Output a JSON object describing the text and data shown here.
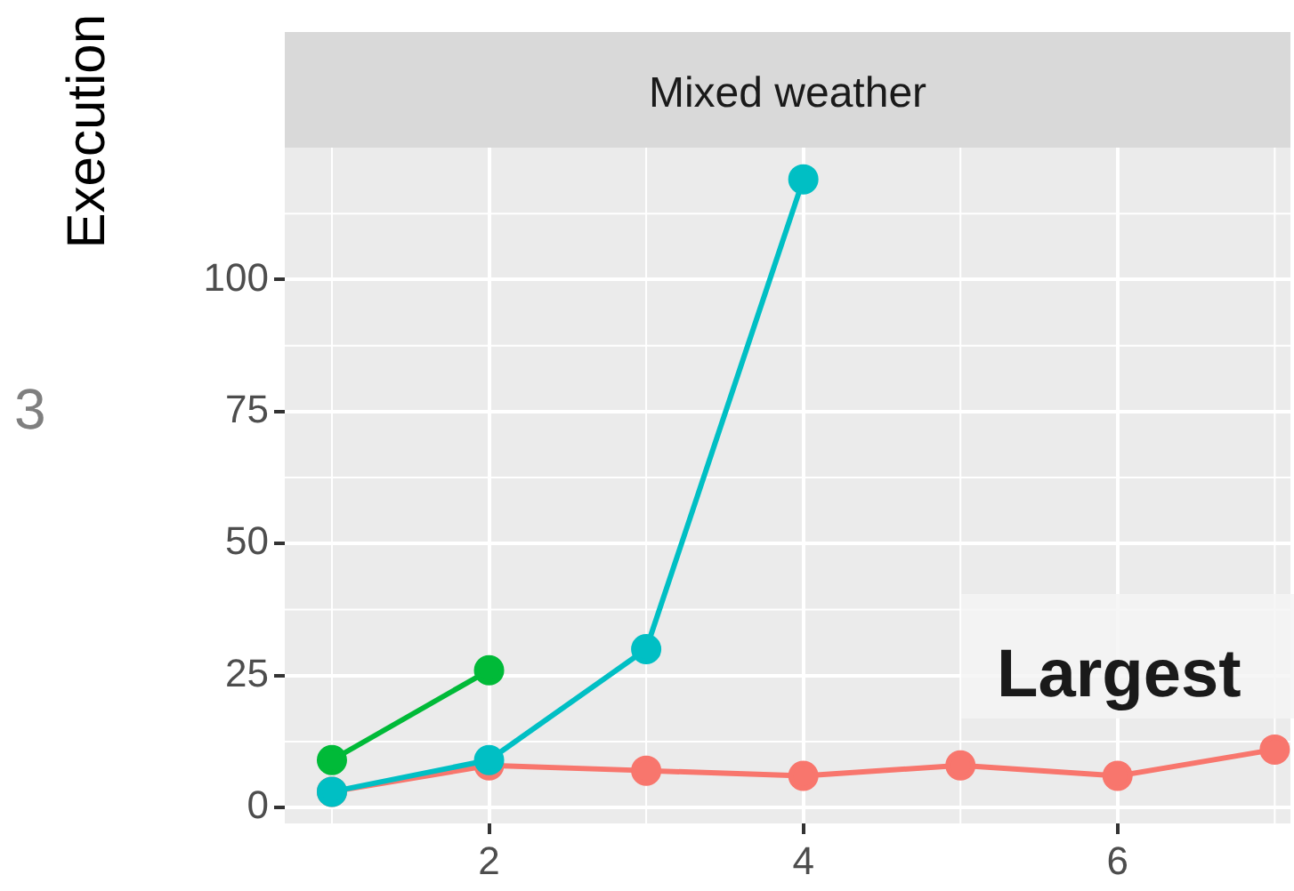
{
  "chart_data": {
    "type": "line",
    "title": "Mixed weather",
    "ylabel": "Execution",
    "xlim": [
      0.7,
      7.1
    ],
    "xticks": [
      2,
      4,
      6
    ],
    "ylim": [
      -3,
      125
    ],
    "yticks": [
      0,
      25,
      50,
      75,
      100
    ],
    "grid": true,
    "legend": false,
    "marker": "circle",
    "line_style": "solid",
    "annotations": [
      "3",
      "Largest"
    ],
    "series": [
      {
        "color": "#f8766d",
        "x": [
          1,
          2,
          3,
          4,
          5,
          6,
          7
        ],
        "values": [
          3,
          8,
          7,
          6,
          8,
          6,
          11
        ]
      },
      {
        "color": "#00ba38",
        "x": [
          1,
          2
        ],
        "values": [
          9,
          26
        ]
      },
      {
        "color": "#00bfc4",
        "x": [
          1,
          2,
          3,
          4
        ],
        "values": [
          3,
          9,
          30,
          119
        ]
      }
    ]
  }
}
